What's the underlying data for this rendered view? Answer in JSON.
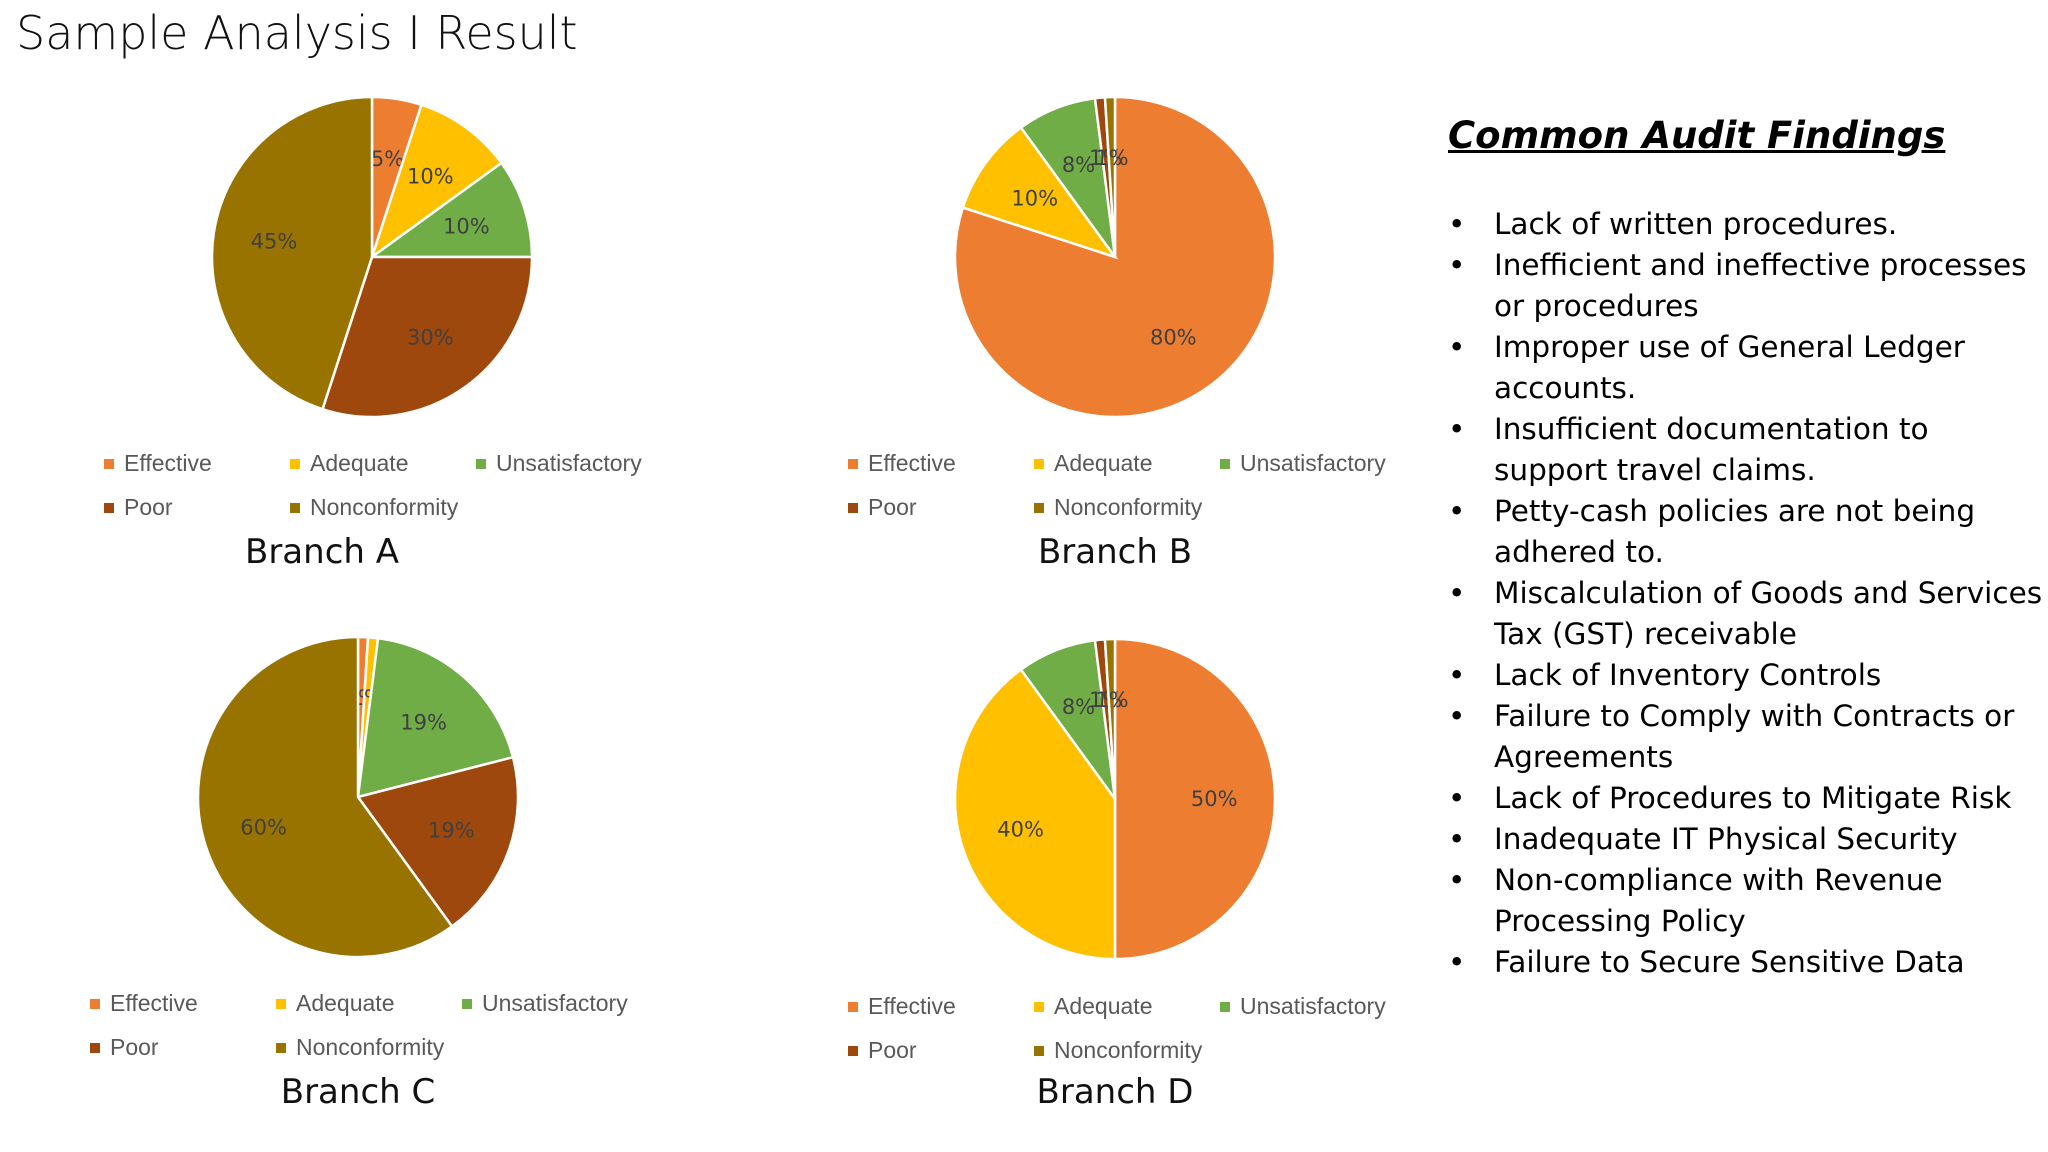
{
  "title": "Sample Analysis I Result",
  "colors": {
    "Effective": "#ED7D31",
    "Adequate": "#FFC000",
    "Unsatisfactory": "#70AD47",
    "Poor": "#9E480E",
    "Nonconformity": "#997300"
  },
  "legend_labels": [
    "Effective",
    "Adequate",
    "Unsatisfactory",
    "Poor",
    "Nonconformity"
  ],
  "chart_data": [
    {
      "type": "pie",
      "title": "Branch A",
      "categories": [
        "Effective",
        "Adequate",
        "Unsatisfactory",
        "Poor",
        "Nonconformity"
      ],
      "values": [
        5,
        10,
        10,
        30,
        45
      ],
      "data_labels": [
        "5%",
        "10%",
        "10%",
        "30%",
        "45%"
      ]
    },
    {
      "type": "pie",
      "title": "Branch B",
      "categories": [
        "Effective",
        "Adequate",
        "Unsatisfactory",
        "Poor",
        "Nonconformity"
      ],
      "values": [
        80,
        10,
        8,
        1,
        1
      ],
      "data_labels": [
        "80%",
        "10%",
        "8%",
        "1%",
        "1%"
      ]
    },
    {
      "type": "pie",
      "title": "Branch C",
      "categories": [
        "Effective",
        "Adequate",
        "Unsatisfactory",
        "Poor",
        "Nonconformity"
      ],
      "values": [
        1,
        1,
        19,
        19,
        60
      ],
      "data_labels": [
        "1%",
        "1%",
        "19%",
        "19%",
        "60%"
      ]
    },
    {
      "type": "pie",
      "title": "Branch D",
      "categories": [
        "Effective",
        "Adequate",
        "Unsatisfactory",
        "Poor",
        "Nonconformity"
      ],
      "values": [
        50,
        40,
        8,
        1,
        1
      ],
      "data_labels": [
        "50%",
        "40%",
        "8%",
        "1%",
        "1%"
      ]
    }
  ],
  "findings": {
    "title": "Common Audit Findings",
    "bullet": "•",
    "items": [
      "Lack of written procedures.",
      "Inefficient and ineffective processes or procedures",
      "Improper use of General Ledger accounts.",
      "Insufficient documentation to support travel claims.",
      "Petty-cash policies are not being adhered to.",
      "Miscalculation of Goods and Services Tax (GST) receivable",
      "Lack of Inventory Controls",
      "Failure to Comply with Contracts or Agreements",
      "Lack of Procedures to Mitigate Risk",
      "Inadequate IT Physical Security",
      "Non-compliance with Revenue Processing Policy",
      "Failure to Secure Sensitive Data"
    ]
  }
}
